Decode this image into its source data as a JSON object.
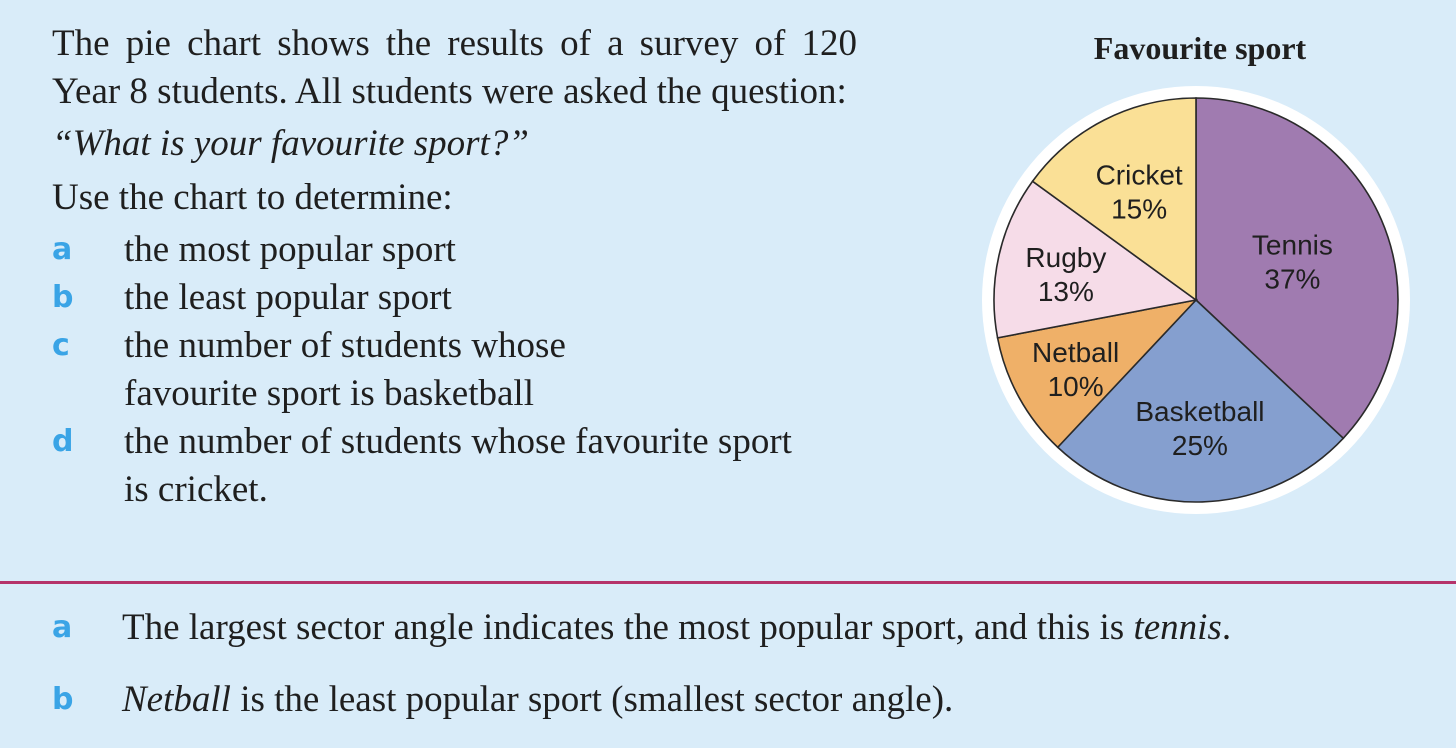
{
  "question": {
    "intro": "The pie chart shows the results of a survey of 120 Year 8 students. All students were asked the question:",
    "quote": "“What is your favourite sport?”",
    "instruction": "Use the chart to determine:",
    "items": [
      {
        "letter": "a",
        "text": "the most popular sport"
      },
      {
        "letter": "b",
        "text": "the least popular sport"
      },
      {
        "letter": "c",
        "line1": "the number of students whose",
        "line2": "favourite sport is basketball"
      },
      {
        "letter": "d",
        "line1": "the number of students whose favourite sport",
        "line2": "is cricket."
      }
    ]
  },
  "solution": {
    "a": {
      "letter": "a",
      "pre": "The largest sector angle indicates the most popular sport, and this is ",
      "em": "tennis",
      "post": "."
    },
    "b": {
      "letter": "b",
      "em": "Netball",
      "post": " is the least popular sport (smallest sector angle)."
    }
  },
  "chart_data": {
    "type": "pie",
    "title": "Favourite sport",
    "slices": [
      {
        "label": "Tennis",
        "value": 37,
        "value_label": "37%",
        "color": "#a07bb0"
      },
      {
        "label": "Basketball",
        "value": 25,
        "value_label": "25%",
        "color": "#859fcf"
      },
      {
        "label": "Netball",
        "value": 10,
        "value_label": "10%",
        "color": "#efb068"
      },
      {
        "label": "Rugby",
        "value": 13,
        "value_label": "13%",
        "color": "#f6dce8"
      },
      {
        "label": "Cricket",
        "value": 15,
        "value_label": "15%",
        "color": "#fae096"
      }
    ]
  },
  "colors": {
    "background": "#d9ecf9",
    "letter_accent": "#3aa4e6",
    "divider": "#b5336a"
  }
}
